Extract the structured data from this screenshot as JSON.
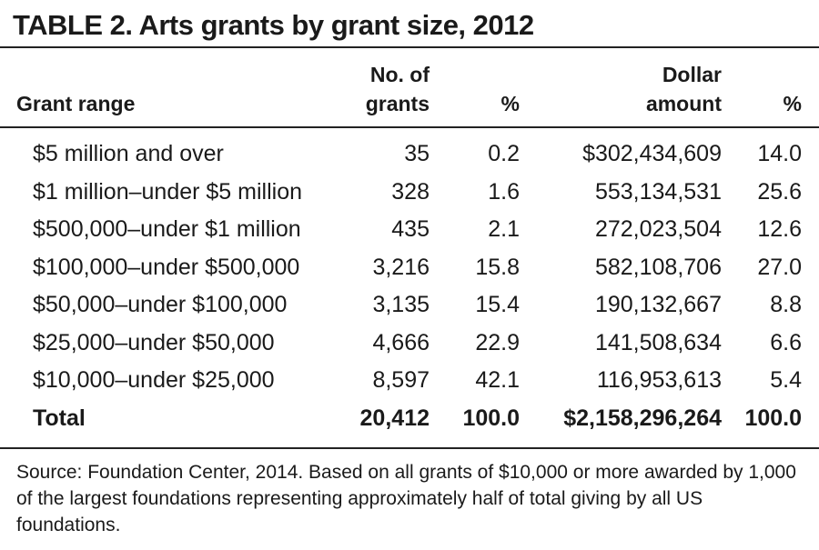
{
  "title": "TABLE 2. Arts grants by grant size, 2012",
  "headers": {
    "range": "Grant range",
    "num_line1": "No. of",
    "num_line2": "grants",
    "pct1": "%",
    "amt_line1": "Dollar",
    "amt_line2": "amount",
    "pct2": "%"
  },
  "rows": [
    {
      "range": "$5 million and over",
      "num": "35",
      "pct1": "0.2",
      "amt": "$302,434,609",
      "pct2": "14.0"
    },
    {
      "range": "$1 million–under $5 million",
      "num": "328",
      "pct1": "1.6",
      "amt": "553,134,531",
      "pct2": "25.6"
    },
    {
      "range": "$500,000–under $1 million",
      "num": "435",
      "pct1": "2.1",
      "amt": "272,023,504",
      "pct2": "12.6"
    },
    {
      "range": "$100,000–under $500,000",
      "num": "3,216",
      "pct1": "15.8",
      "amt": "582,108,706",
      "pct2": "27.0"
    },
    {
      "range": "$50,000–under $100,000",
      "num": "3,135",
      "pct1": "15.4",
      "amt": "190,132,667",
      "pct2": "8.8"
    },
    {
      "range": "$25,000–under $50,000",
      "num": "4,666",
      "pct1": "22.9",
      "amt": "141,508,634",
      "pct2": "6.6"
    },
    {
      "range": "$10,000–under $25,000",
      "num": "8,597",
      "pct1": "42.1",
      "amt": "116,953,613",
      "pct2": "5.4"
    }
  ],
  "total": {
    "range": "Total",
    "num": "20,412",
    "pct1": "100.0",
    "amt": "$2,158,296,264",
    "pct2": "100.0"
  },
  "source": "Source: Foundation Center, 2014. Based on all grants of $10,000 or more awarded by 1,000 of the largest foundations representing approximately half of total giving by all US foundations."
}
